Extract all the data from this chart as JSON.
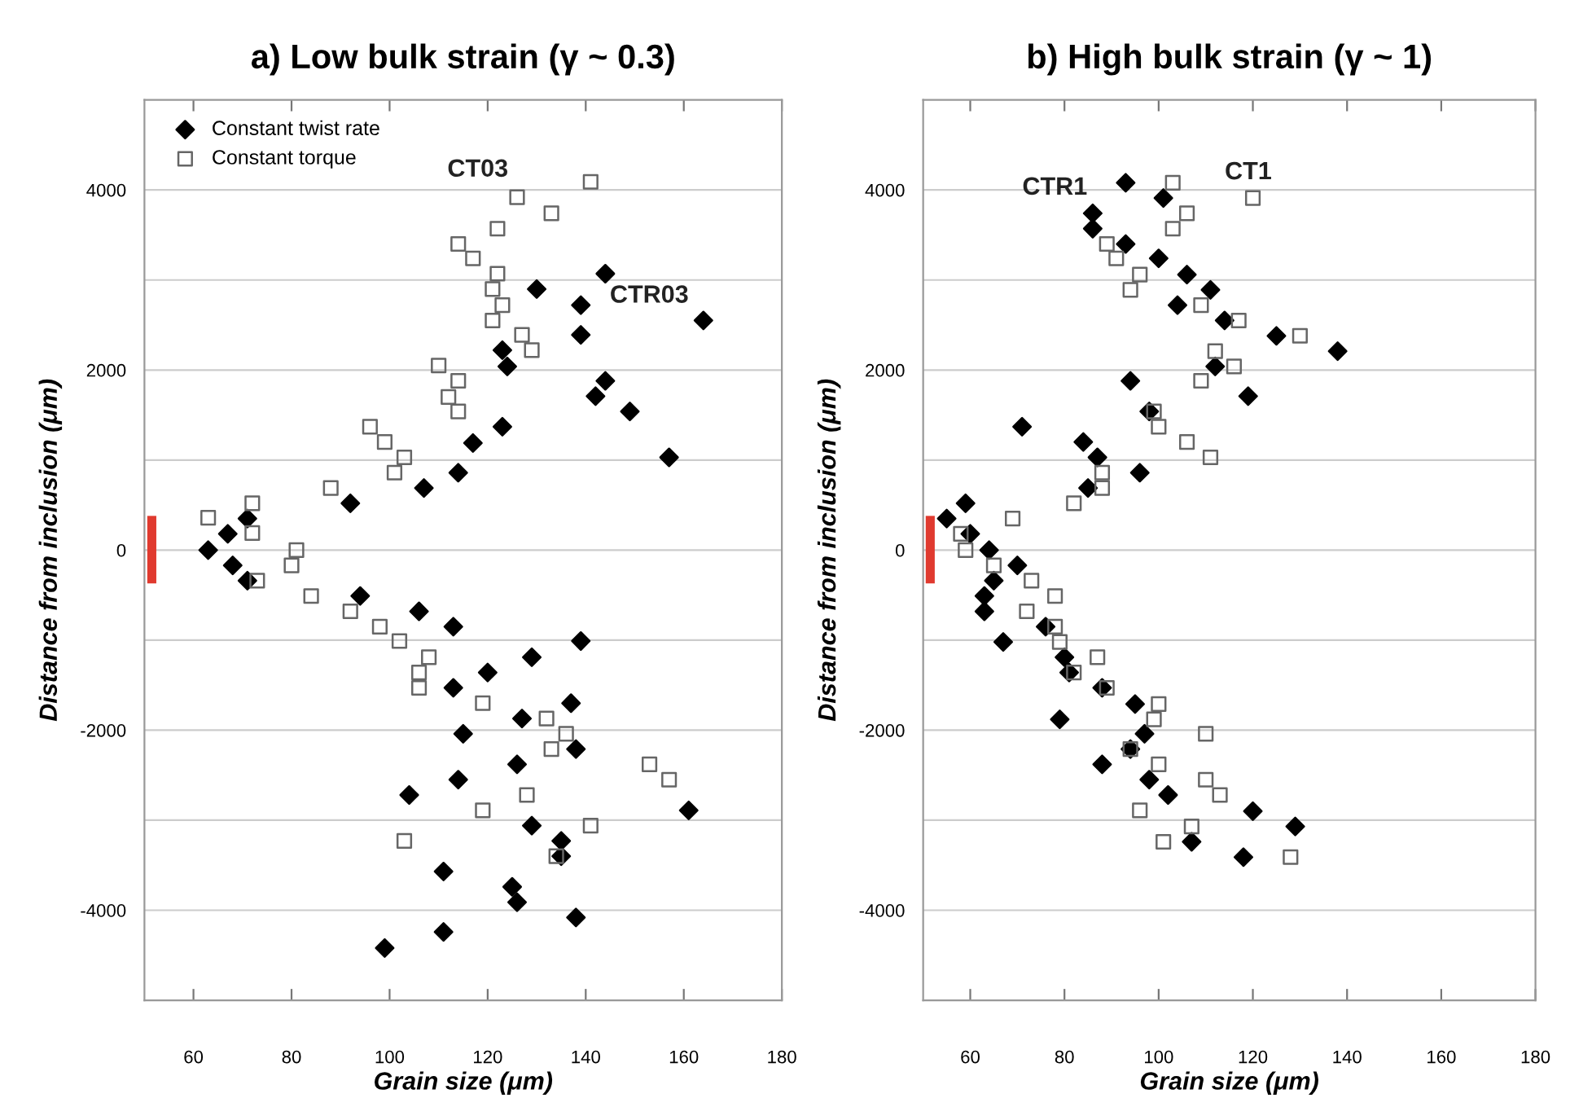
{
  "chart_data": [
    {
      "type": "scatter",
      "title": "a) Low bulk strain (γ ~ 0.3)",
      "xlabel": "Grain size (μm)",
      "ylabel": "Distance from inclusion (μm)",
      "xlim": [
        50,
        180
      ],
      "xticks": [
        60,
        80,
        100,
        120,
        140,
        160,
        180
      ],
      "ylim": [
        -5000,
        5000
      ],
      "yticks": [
        -4000,
        {
          "value": -3000,
          "label": null
        },
        -2000,
        {
          "value": -1000,
          "label": null
        },
        0,
        {
          "value": 1000,
          "label": null
        },
        2000,
        {
          "value": 3000,
          "label": null
        },
        4000
      ],
      "grid": "y",
      "legend": "top left",
      "annotations": [
        "CT03",
        "CTR03"
      ],
      "series": [
        {
          "name": "Constant twist rate",
          "marker": "diamond",
          "color": "#000000",
          "x": [
            63,
            67,
            71,
            92,
            107,
            114,
            117,
            123,
            124,
            123,
            130,
            139,
            139,
            144,
            144,
            142,
            149,
            157,
            164,
            68,
            71,
            94,
            106,
            113,
            139,
            129,
            120,
            113,
            137,
            127,
            115,
            138,
            126,
            114,
            104,
            161,
            129,
            135,
            135,
            111,
            125,
            126,
            138,
            111,
            99
          ],
          "values": [
            0,
            180,
            350,
            520,
            690,
            860,
            1190,
            1370,
            2040,
            2220,
            2900,
            2720,
            2390,
            3070,
            1880,
            1710,
            1540,
            1030,
            2550,
            -170,
            -340,
            -510,
            -680,
            -850,
            -1010,
            -1190,
            -1360,
            -1530,
            -1700,
            -1870,
            -2040,
            -2210,
            -2380,
            -2550,
            -2720,
            -2890,
            -3060,
            -3230,
            -3400,
            -3570,
            -3740,
            -3910,
            -4080,
            -4240,
            -4420
          ]
        },
        {
          "name": "Constant torque",
          "marker": "square",
          "color": "#666666",
          "x": [
            63,
            72,
            72,
            81,
            88,
            96,
            99,
            103,
            101,
            110,
            114,
            112,
            114,
            114,
            117,
            122,
            122,
            121,
            123,
            121,
            127,
            129,
            126,
            133,
            141,
            80,
            73,
            84,
            92,
            98,
            102,
            108,
            106,
            106,
            119,
            132,
            136,
            133,
            153,
            157,
            128,
            119,
            141,
            103,
            134
          ],
          "values": [
            360,
            520,
            190,
            0,
            690,
            1370,
            1200,
            1030,
            860,
            2050,
            1880,
            1700,
            1540,
            3400,
            3240,
            3570,
            3070,
            2900,
            2720,
            2550,
            2390,
            2220,
            3920,
            3740,
            4090,
            -170,
            -340,
            -510,
            -680,
            -850,
            -1010,
            -1190,
            -1360,
            -1530,
            -1700,
            -1870,
            -2040,
            -2210,
            -2380,
            -2550,
            -2720,
            -2890,
            -3060,
            -3230,
            -3400
          ]
        },
        {
          "type": "line",
          "marker": "none",
          "color": "#e03a2f",
          "x": [
            51.5,
            51.5
          ],
          "values": [
            380,
            -370
          ]
        }
      ]
    },
    {
      "type": "scatter",
      "title": "b) High bulk strain (γ ~ 1)",
      "xlabel": "Grain size (μm)",
      "ylabel": "Distance from inclusion (μm)",
      "xlim": [
        50,
        180
      ],
      "xticks": [
        60,
        80,
        100,
        120,
        140,
        160,
        180
      ],
      "ylim": [
        -5000,
        5000
      ],
      "yticks": [
        -4000,
        {
          "value": -3000,
          "label": null
        },
        -2000,
        {
          "value": -1000,
          "label": null
        },
        0,
        {
          "value": 1000,
          "label": null
        },
        2000,
        {
          "value": 3000,
          "label": null
        },
        4000
      ],
      "grid": "y",
      "annotations": [
        "CTR1",
        "CT1"
      ],
      "series": [
        {
          "marker": "diamond",
          "color": "#000000",
          "x": [
            93,
            101,
            86,
            86,
            93,
            100,
            106,
            111,
            104,
            114,
            125,
            138,
            112,
            94,
            119,
            98,
            71,
            84,
            87,
            96,
            85,
            59,
            55,
            60,
            64,
            70,
            65,
            63,
            63,
            67,
            76,
            80,
            81,
            88,
            95,
            79,
            97,
            94,
            88,
            98,
            102,
            120,
            129,
            107,
            118
          ],
          "values": [
            4080,
            3910,
            3740,
            3570,
            3400,
            3240,
            3060,
            2890,
            2720,
            2550,
            2380,
            2210,
            2040,
            1880,
            1710,
            1540,
            1370,
            1200,
            1030,
            860,
            690,
            520,
            350,
            180,
            0,
            -170,
            -340,
            -510,
            -680,
            -1020,
            -850,
            -1190,
            -1360,
            -1530,
            -1710,
            -1880,
            -2040,
            -2210,
            -2380,
            -2550,
            -2720,
            -2900,
            -3070,
            -3240,
            -3410
          ]
        },
        {
          "marker": "square",
          "color": "#666666",
          "x": [
            103,
            120,
            106,
            103,
            89,
            91,
            96,
            94,
            109,
            117,
            130,
            112,
            116,
            109,
            99,
            100,
            106,
            111,
            88,
            88,
            82,
            69,
            58,
            59,
            65,
            73,
            78,
            72,
            78,
            79,
            87,
            82,
            89,
            100,
            99,
            110,
            94,
            100,
            110,
            113,
            96,
            107,
            101,
            128
          ],
          "values": [
            4080,
            3910,
            3740,
            3570,
            3400,
            3240,
            3060,
            2890,
            2720,
            2550,
            2380,
            2210,
            2040,
            1880,
            1540,
            1370,
            1200,
            1030,
            860,
            690,
            520,
            350,
            180,
            0,
            -170,
            -340,
            -510,
            -680,
            -850,
            -1020,
            -1190,
            -1360,
            -1530,
            -1710,
            -1880,
            -2040,
            -2210,
            -2380,
            -2550,
            -2720,
            -2890,
            -3070,
            -3240,
            -3410
          ]
        },
        {
          "type": "line",
          "marker": "none",
          "color": "#e03a2f",
          "x": [
            51.5,
            51.5
          ],
          "values": [
            380,
            -370
          ]
        }
      ]
    }
  ]
}
